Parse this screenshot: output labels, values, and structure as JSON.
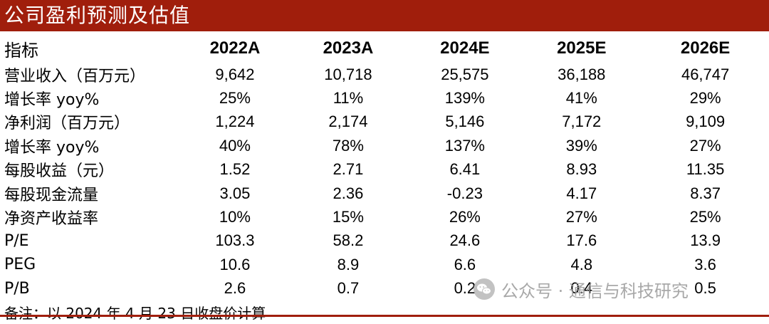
{
  "title": "公司盈利预测及估值",
  "header": {
    "label": "指标",
    "years": [
      "2022A",
      "2023A",
      "2024E",
      "2025E",
      "2026E"
    ]
  },
  "rows": [
    {
      "label": "营业收入（百万元）",
      "values": [
        "9,642",
        "10,718",
        "25,575",
        "36,188",
        "46,747"
      ]
    },
    {
      "label": "增长率 yoy%",
      "values": [
        "25%",
        "11%",
        "139%",
        "41%",
        "29%"
      ]
    },
    {
      "label": "净利润（百万元）",
      "values": [
        "1,224",
        "2,174",
        "5,146",
        "7,172",
        "9,109"
      ]
    },
    {
      "label": "增长率 yoy%",
      "values": [
        "40%",
        "78%",
        "137%",
        "39%",
        "27%"
      ]
    },
    {
      "label": "每股收益（元）",
      "values": [
        "1.52",
        "2.71",
        "6.41",
        "8.93",
        "11.35"
      ]
    },
    {
      "label": "每股现金流量",
      "values": [
        "3.05",
        "2.36",
        "-0.23",
        "4.17",
        "8.37"
      ]
    },
    {
      "label": "净资产收益率",
      "values": [
        "10%",
        "15%",
        "26%",
        "27%",
        "25%"
      ]
    },
    {
      "label": "P/E",
      "values": [
        "103.3",
        "58.2",
        "24.6",
        "17.6",
        "13.9"
      ]
    },
    {
      "label": "PEG",
      "values": [
        "10.6",
        "8.9",
        "6.6",
        "4.8",
        "3.6"
      ]
    },
    {
      "label": "P/B",
      "values": [
        "2.6",
        "0.7",
        "0.2",
        "0.4",
        "0.5"
      ]
    }
  ],
  "note": "备注：以 2024 年 4 月 23 日收盘价计算",
  "watermark": {
    "text": "公众号 · 通信与科技研究",
    "icon": "wechat-icon"
  },
  "colors": {
    "accent": "#A01E0C",
    "watermark": "#9a9a9a"
  }
}
